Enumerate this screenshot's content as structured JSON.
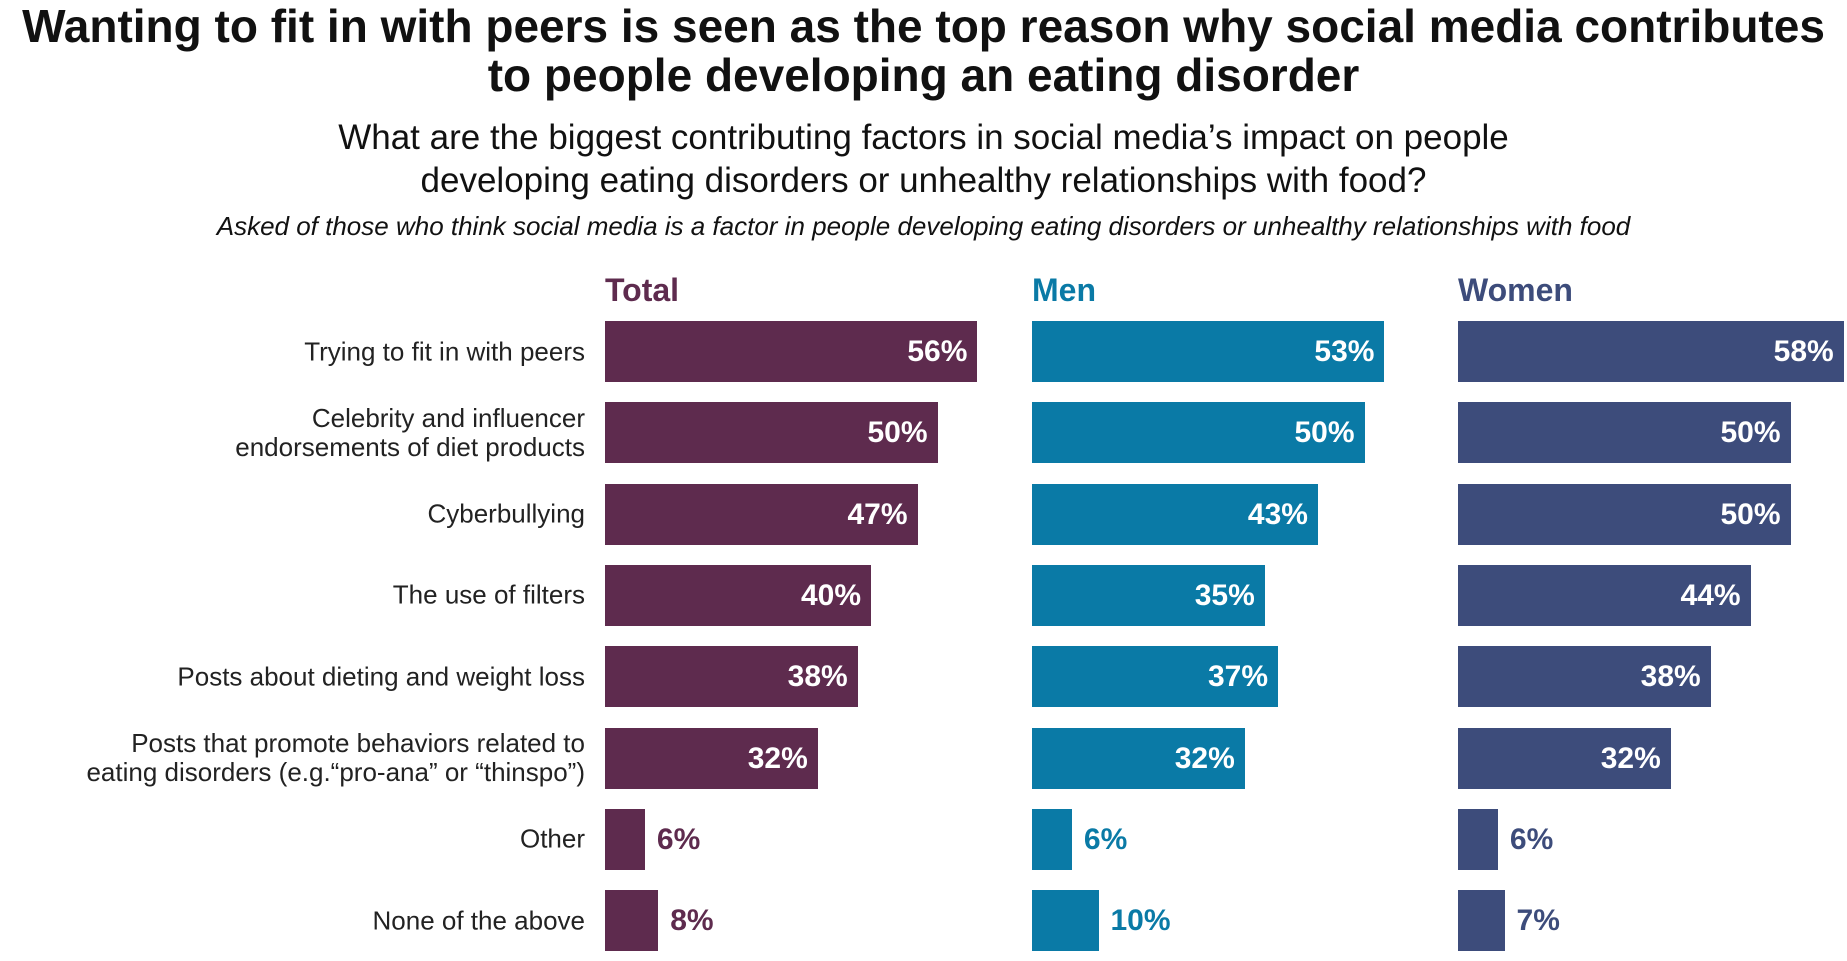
{
  "chart_data": {
    "type": "bar",
    "title": "Wanting to fit in with peers is seen as the top reason why social media contributes to people developing an eating disorder",
    "subtitle": "What are the biggest contributing factors in social media’s impact on people developing eating disorders or unhealthy relationships with food?",
    "note": "Asked of those who think social media is a factor in people developing eating disorders or unhealthy relationships with food",
    "categories": [
      "Trying to fit in with peers",
      "Celebrity and influencer endorsements of diet products",
      "Cyberbullying",
      "The use of filters",
      "Posts about dieting and weight loss",
      "Posts that promote behaviors related to eating disorders (e.g.“pro-ana” or “thinspo”)",
      "Other",
      "None of the above"
    ],
    "category_lines": [
      [
        "Trying to fit in with peers"
      ],
      [
        "Celebrity and influencer",
        "endorsements of diet products"
      ],
      [
        "Cyberbullying"
      ],
      [
        "The use of filters"
      ],
      [
        "Posts about dieting and weight loss"
      ],
      [
        "Posts that promote behaviors related to",
        "eating disorders (e.g.“pro-ana” or “thinspo”)"
      ],
      [
        "Other"
      ],
      [
        "None of the above"
      ]
    ],
    "series": [
      {
        "name": "Total",
        "color": "#5e2b4e",
        "values": [
          56,
          50,
          47,
          40,
          38,
          32,
          6,
          8
        ]
      },
      {
        "name": "Men",
        "color": "#0a7aa6",
        "values": [
          53,
          50,
          43,
          35,
          37,
          32,
          6,
          10
        ]
      },
      {
        "name": "Women",
        "color": "#3d4c7b",
        "values": [
          58,
          50,
          50,
          44,
          38,
          32,
          6,
          7
        ]
      }
    ],
    "value_suffix": "%",
    "xlim": [
      0,
      60
    ],
    "grid": false
  }
}
